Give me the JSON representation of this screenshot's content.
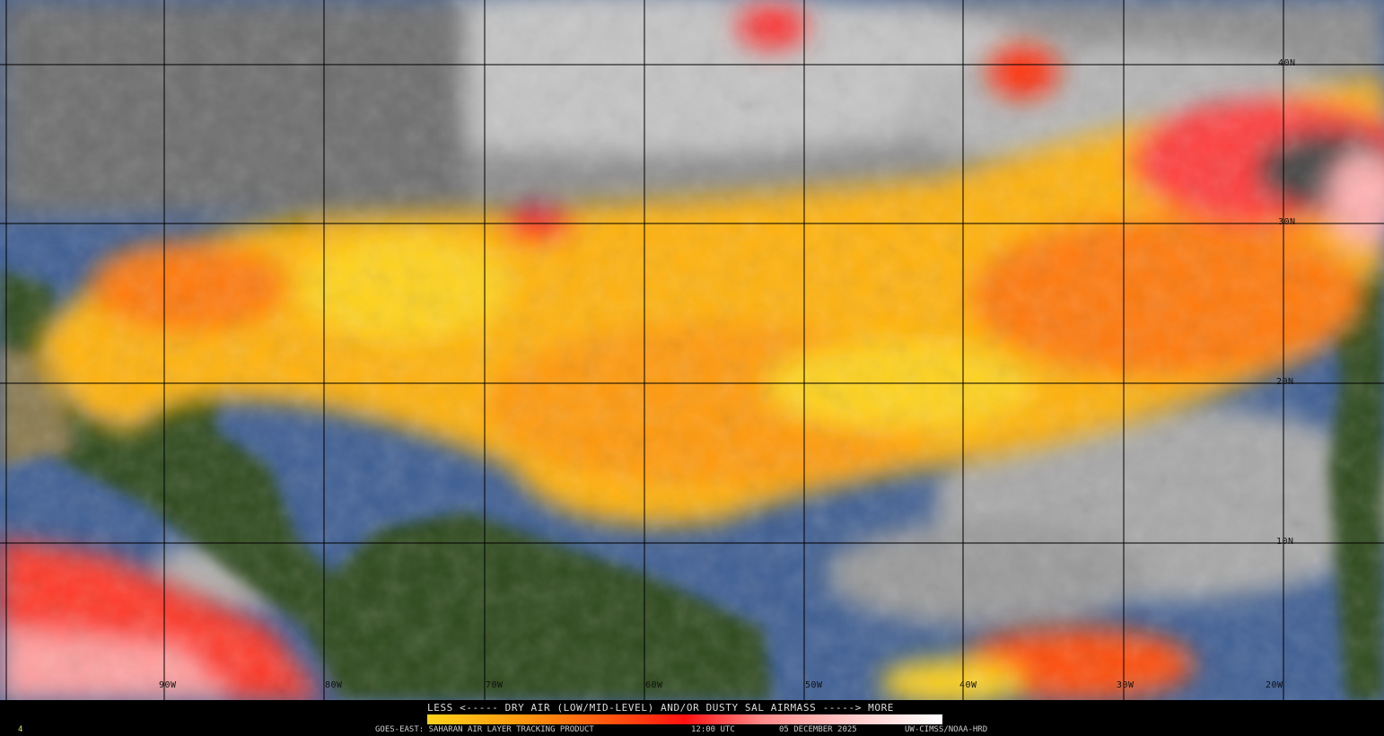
{
  "legend": {
    "title": "LESS <----- DRY AIR (LOW/MID-LEVEL) AND/OR DUSTY SAL AIRMASS -----> MORE",
    "colors": [
      "#ffd21a",
      "#ff9a10",
      "#ff4a10",
      "#ff1010",
      "#ff8a8a",
      "#ffc8c8",
      "#ffffff"
    ]
  },
  "footer": {
    "product": "GOES-EAST: SAHARAN AIR LAYER TRACKING PRODUCT",
    "time": "12:00 UTC",
    "date": "05 DECEMBER 2025",
    "credit": "UW-CIMSS/NOAA-HRD",
    "corner_mark": "4"
  },
  "map": {
    "longitude_labels": [
      "90W",
      "80W",
      "70W",
      "60W",
      "50W",
      "40W",
      "30W",
      "20W"
    ],
    "latitude_labels": [
      "40N",
      "30N",
      "20N",
      "10N"
    ],
    "colors": {
      "ocean": "#3f5f94",
      "cloud": "#9a9a9a",
      "land": "#2f4a1e",
      "grid": "#000000"
    }
  }
}
